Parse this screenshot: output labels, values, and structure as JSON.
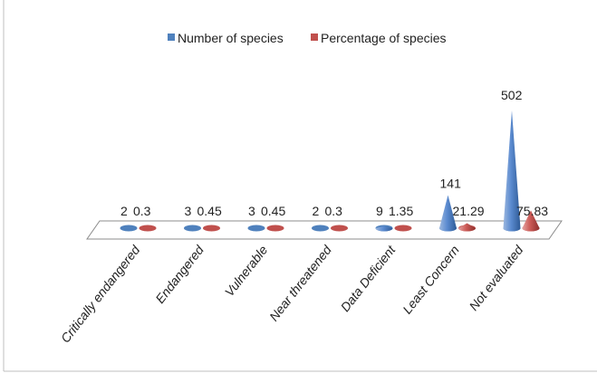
{
  "chart_data": {
    "type": "bar",
    "style": "3d-cone",
    "legend_position": "top",
    "grid": false,
    "categories": [
      "Critically endangered",
      "Endangered",
      "Vulnerable",
      "Near threatened",
      "Data Deficient",
      "Least Concern",
      "Not evaluated"
    ],
    "series": [
      {
        "name": "Number of species",
        "color": "#4F81BD",
        "values": [
          2,
          3,
          3,
          2,
          9,
          141,
          502
        ],
        "labels": [
          "2",
          "3",
          "3",
          "2",
          "9",
          "141",
          "502"
        ]
      },
      {
        "name": "Percentage of species",
        "color": "#C0504D",
        "values": [
          0.3,
          0.45,
          0.45,
          0.3,
          1.35,
          21.29,
          75.83
        ],
        "labels": [
          "0.3",
          "0.45",
          "0.45",
          "0.3",
          "1.35",
          "21.29",
          "75.83"
        ]
      }
    ],
    "ylim": [
      0,
      502
    ]
  }
}
